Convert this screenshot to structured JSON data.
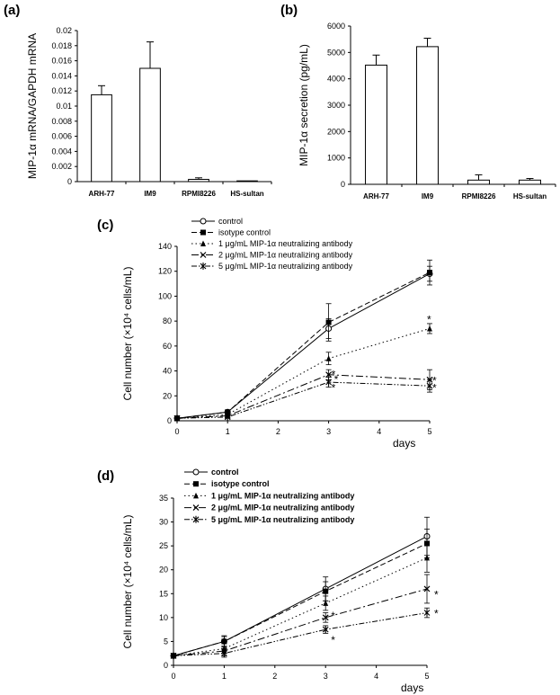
{
  "chart_data": [
    {
      "panel_label": "(a)",
      "type": "bar",
      "categories": [
        "ARH-77",
        "IM9",
        "RPMI8226",
        "HS-sultan"
      ],
      "values": [
        0.0115,
        0.015,
        0.0003,
        0.0001
      ],
      "errors": [
        0.0012,
        0.0035,
        0.0002,
        0.0
      ],
      "ylabel": "MIP-1α mRNA/GAPDH mRNA",
      "ylim": [
        0,
        0.02
      ],
      "yticks": [
        "0",
        "0.002",
        "0.004",
        "0.006",
        "0.008",
        "0.01",
        "0.012",
        "0.014",
        "0.016",
        "0.018",
        "0.02"
      ]
    },
    {
      "panel_label": "(b)",
      "type": "bar",
      "categories": [
        "ARH-77",
        "IM9",
        "RPMI8226",
        "HS-sultan"
      ],
      "values": [
        4520,
        5220,
        160,
        160
      ],
      "errors": [
        380,
        320,
        200,
        60
      ],
      "ylabel": "MIP-1α secretion (pg/mL)",
      "ylim": [
        0,
        6000
      ],
      "yticks": [
        "0",
        "1000",
        "2000",
        "3000",
        "4000",
        "5000",
        "6000"
      ]
    },
    {
      "panel_label": "(c)",
      "type": "line",
      "x": [
        0,
        1,
        3,
        5
      ],
      "xlim": [
        0,
        5
      ],
      "xticks": [
        "0",
        "1",
        "2",
        "3",
        "4",
        "5"
      ],
      "ylim": [
        0,
        140
      ],
      "yticks": [
        "0",
        "20",
        "40",
        "60",
        "80",
        "100",
        "120",
        "140"
      ],
      "xlabel": "days",
      "ylabel": "Cell number (×10⁴ cells/mL)",
      "legend_position": "top",
      "series": [
        {
          "name": "control",
          "values": [
            2,
            7,
            74,
            118
          ],
          "errors": [
            0,
            1,
            8,
            6
          ]
        },
        {
          "name": "isotype control",
          "values": [
            2,
            7,
            79,
            119
          ],
          "errors": [
            0,
            1,
            15,
            10
          ]
        },
        {
          "name": "1 μg/mL MIP-1α neutralizing antibody",
          "values": [
            2,
            5,
            50,
            74
          ],
          "errors": [
            0,
            1,
            5,
            4
          ]
        },
        {
          "name": "2 μg/mL MIP-1α neutralizing antibody",
          "values": [
            2,
            4,
            37,
            33
          ],
          "errors": [
            0,
            1,
            4,
            8
          ]
        },
        {
          "name": "5 μg/mL MIP-1α neutralizing antibody",
          "values": [
            2,
            3,
            31,
            28
          ],
          "errors": [
            0,
            1,
            4,
            5
          ]
        }
      ],
      "annotations": [
        "*",
        "*",
        "*",
        "*",
        "*",
        "*"
      ]
    },
    {
      "panel_label": "(d)",
      "type": "line",
      "x": [
        0,
        1,
        3,
        5
      ],
      "xlim": [
        0,
        5
      ],
      "xticks": [
        "0",
        "1",
        "2",
        "3",
        "4",
        "5"
      ],
      "ylim": [
        0,
        35
      ],
      "yticks": [
        "0",
        "5",
        "10",
        "15",
        "20",
        "25",
        "30",
        "35"
      ],
      "xlabel": "days",
      "ylabel": "Cell number (×10⁴ cells/mL)",
      "legend_position": "top",
      "series": [
        {
          "name": "control",
          "values": [
            2,
            5,
            16,
            27
          ],
          "errors": [
            0,
            1.2,
            2.5,
            4
          ]
        },
        {
          "name": "isotype control",
          "values": [
            2,
            5,
            15.5,
            25.5
          ],
          "errors": [
            0,
            1,
            2,
            3
          ]
        },
        {
          "name": "1 μg/mL MIP-1α neutralizing antibody",
          "values": [
            2,
            3.5,
            13,
            22.5
          ],
          "errors": [
            0,
            1,
            1.5,
            3
          ]
        },
        {
          "name": "2 μg/mL MIP-1α neutralizing antibody",
          "values": [
            2,
            3,
            10,
            16
          ],
          "errors": [
            0,
            1,
            1,
            3
          ]
        },
        {
          "name": "5 μg/mL MIP-1α neutralizing antibody",
          "values": [
            2,
            2.5,
            7.5,
            11
          ],
          "errors": [
            0,
            0.8,
            0.8,
            1
          ]
        }
      ],
      "annotations": [
        "*",
        "*",
        "*",
        "*"
      ]
    }
  ]
}
